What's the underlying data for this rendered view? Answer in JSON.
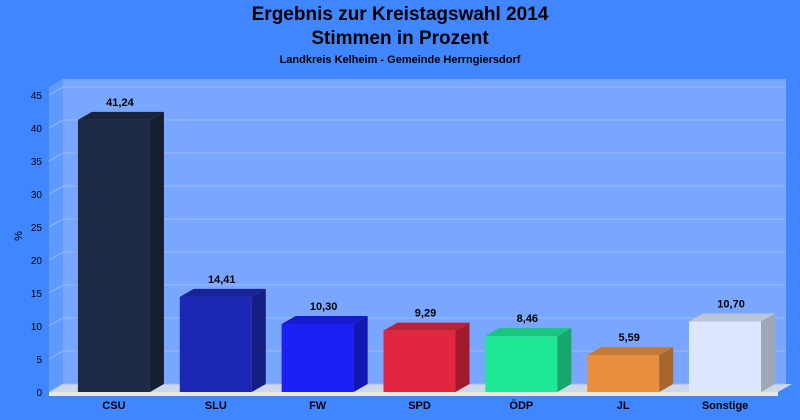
{
  "chart_data": {
    "type": "bar",
    "title": "Ergebnis zur Kreistagswahl 2014",
    "title_line2": "Stimmen in Prozent",
    "subtitle": "Landkreis Kelheim - Gemeinde Herrngiersdorf",
    "ylabel": "%",
    "xlabel": "",
    "ylim": [
      0,
      45
    ],
    "yticks": [
      0,
      5,
      10,
      15,
      20,
      25,
      30,
      35,
      40,
      45
    ],
    "grid": true,
    "categories": [
      "CSU",
      "SLU",
      "FW",
      "SPD",
      "ÖDP",
      "JL",
      "Sonstige"
    ],
    "values": [
      41.24,
      14.41,
      10.3,
      9.29,
      8.46,
      5.59,
      10.7
    ],
    "value_labels": [
      "41,24",
      "14,41",
      "10,30",
      "9,29",
      "8,46",
      "5,59",
      "10,70"
    ],
    "colors": [
      "#1e2a45",
      "#1c28b4",
      "#1a1ff5",
      "#e1263f",
      "#1ee896",
      "#e88e3c",
      "#dde6ff"
    ]
  }
}
